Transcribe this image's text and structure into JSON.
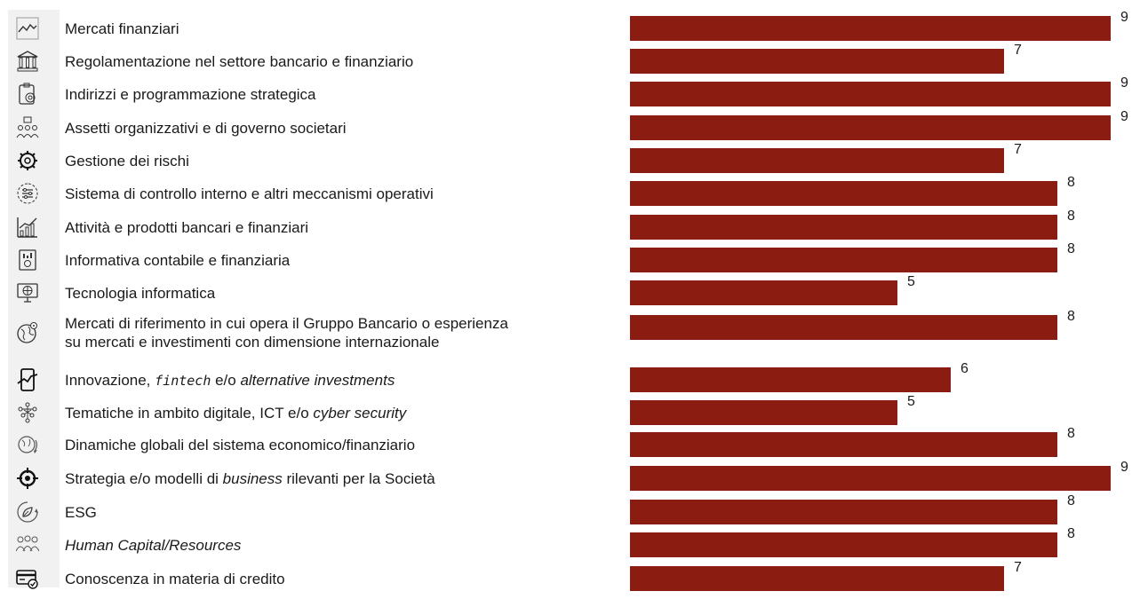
{
  "chart_data": {
    "type": "bar",
    "orientation": "horizontal",
    "bar_color": "#8a1c12",
    "xlim": [
      0,
      9
    ],
    "categories": [
      "Mercati finanziari",
      "Regolamentazione nel settore bancario e finanziario",
      "Indirizzi e programmazione strategica",
      "Assetti organizzativi e di governo societari",
      "Gestione dei rischi",
      "Sistema di controllo interno e altri meccanismi operativi",
      "Attività e prodotti bancari e finanziari",
      "Informativa contabile e finanziaria",
      "Tecnologia informatica",
      "Mercati di riferimento in cui opera il Gruppo Bancario o esperienza su mercati e investimenti con dimensione internazionale",
      "Innovazione, fintech e/o alternative investments",
      "Tematiche in ambito digitale, ICT e/o cyber security",
      "Dinamiche globali del sistema economico/finanziario",
      "Strategia e/o modelli di business rilevanti per la Società",
      "ESG",
      "Human Capital/Resources",
      "Conoscenza in materia di credito"
    ],
    "values": [
      9,
      7,
      9,
      9,
      7,
      8,
      8,
      8,
      5,
      8,
      6,
      5,
      8,
      9,
      8,
      8,
      7
    ]
  },
  "rows": [
    {
      "icon": "line-chart-icon",
      "segments": [
        {
          "t": "Mercati finanziari"
        }
      ]
    },
    {
      "icon": "bank-building-icon",
      "segments": [
        {
          "t": "Regolamentazione nel settore bancario e finanziario"
        }
      ]
    },
    {
      "icon": "clipboard-target-icon",
      "segments": [
        {
          "t": "Indirizzi e programmazione strategica"
        }
      ]
    },
    {
      "icon": "org-chart-icon",
      "segments": [
        {
          "t": "Assetti organizzativi e di governo societari"
        }
      ]
    },
    {
      "icon": "risk-gear-icon",
      "segments": [
        {
          "t": "Gestione dei rischi"
        }
      ]
    },
    {
      "icon": "settings-sliders-icon",
      "segments": [
        {
          "t": "Sistema di controllo interno e altri meccanismi operativi"
        }
      ]
    },
    {
      "icon": "growth-chart-icon",
      "segments": [
        {
          "t": "Attività e prodotti bancari e finanziari"
        }
      ]
    },
    {
      "icon": "report-document-icon",
      "segments": [
        {
          "t": "Informativa contabile e finanziaria"
        }
      ]
    },
    {
      "icon": "monitor-globe-icon",
      "segments": [
        {
          "t": "Tecnologia informatica"
        }
      ]
    },
    {
      "icon": "globe-pin-icon",
      "segments": [
        {
          "t": "Mercati di riferimento in cui opera il Gruppo Bancario o esperienza"
        },
        {
          "t": "su mercati e investimenti con dimensione internazionale",
          "br": true
        }
      ]
    },
    {
      "icon": "mobile-chart-icon",
      "segments": [
        {
          "t": "Innovazione, "
        },
        {
          "t": "fintech",
          "style": "mono"
        },
        {
          "t": " e/o "
        },
        {
          "t": "alternative investments",
          "style": "italic"
        }
      ]
    },
    {
      "icon": "network-nodes-icon",
      "segments": [
        {
          "t": "Tematiche in ambito digitale, ICT e/o "
        },
        {
          "t": "cyber security",
          "style": "italic"
        }
      ]
    },
    {
      "icon": "globe-cycle-icon",
      "segments": [
        {
          "t": "Dinamiche globali del sistema economico/finanziario"
        }
      ]
    },
    {
      "icon": "crosshair-target-icon",
      "segments": [
        {
          "t": "Strategia e/o modelli di "
        },
        {
          "t": "business",
          "style": "italic"
        },
        {
          "t": " rilevanti per la Società"
        }
      ]
    },
    {
      "icon": "eco-leaf-cycle-icon",
      "segments": [
        {
          "t": "ESG"
        }
      ]
    },
    {
      "icon": "people-group-icon",
      "segments": [
        {
          "t": "Human Capital/Resources",
          "style": "italic"
        }
      ]
    },
    {
      "icon": "credit-card-check-icon",
      "segments": [
        {
          "t": "Conoscenza in materia di credito"
        }
      ]
    }
  ]
}
